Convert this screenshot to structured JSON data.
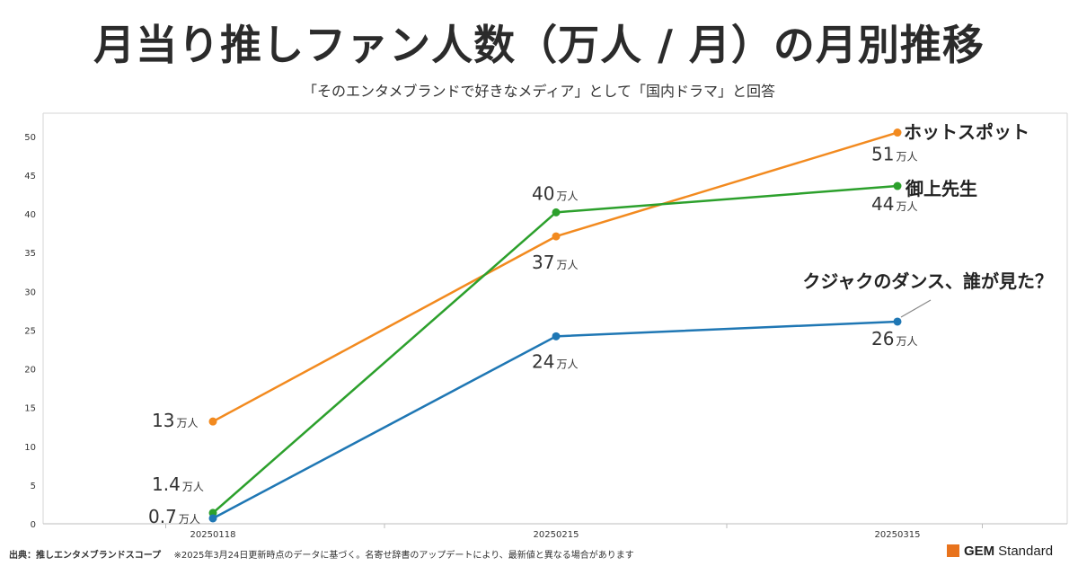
{
  "chart_data": {
    "type": "line",
    "title": "月当り推しファン人数（万人 / 月）の月別推移",
    "subtitle": "「そのエンタメブランドで好きなメディア」として「国内ドラマ」と回答",
    "categories": [
      "20250118",
      "20250215",
      "20250315"
    ],
    "ylim": [
      0,
      53
    ],
    "yticks": [
      0,
      5,
      10,
      15,
      20,
      25,
      30,
      35,
      40,
      45,
      50
    ],
    "grid": false,
    "legend": "direct labels at line ends",
    "unit": "万人",
    "series": [
      {
        "name": "ホットスポット",
        "color": "#f28a1f",
        "values": [
          13.2,
          37.1,
          50.5
        ],
        "labels": [
          "13",
          "37",
          "51"
        ]
      },
      {
        "name": "御上先生",
        "color": "#2ca02c",
        "values": [
          1.4,
          40.2,
          43.6
        ],
        "labels": [
          "1.4",
          "40",
          "44"
        ]
      },
      {
        "name": "クジャクのダンス、誰が見た？",
        "color": "#1f77b4",
        "values": [
          0.7,
          24.2,
          26.1
        ],
        "labels": [
          "0.7",
          "24",
          "26"
        ]
      }
    ]
  },
  "footer": {
    "source": "出典：推しエンタメブランドスコープ",
    "note": "※2025年3月24日更新時点のデータに基づく。名寄せ辞書のアップデートにより、最新値と異なる場合があります"
  },
  "brand": {
    "part1": "GEM",
    "part2": "Standard",
    "color": "#e8731d"
  }
}
